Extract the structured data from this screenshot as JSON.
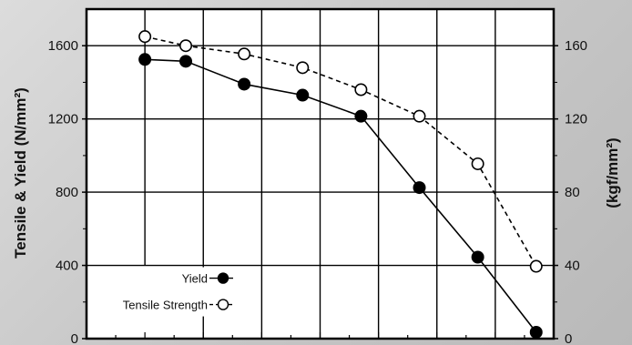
{
  "chart_data": {
    "type": "line",
    "title": "",
    "ylabel_left": "Tensile & Yield (N/mm²)",
    "ylabel_right": "(kgf/mm²)",
    "ylim": [
      0,
      1800
    ],
    "xlim": [
      0,
      8
    ],
    "grid": true,
    "legend_position": "bottom-left",
    "left_ticks": [
      {
        "value": 0,
        "label": "0"
      },
      {
        "value": 400,
        "label": "400"
      },
      {
        "value": 800,
        "label": "800"
      },
      {
        "value": 1200,
        "label": "1200"
      },
      {
        "value": 1600,
        "label": "1600"
      }
    ],
    "right_ticks": [
      {
        "value": 0,
        "label": "0"
      },
      {
        "value": 40,
        "label": "40"
      },
      {
        "value": 80,
        "label": "80"
      },
      {
        "value": 120,
        "label": "120"
      },
      {
        "value": 160,
        "label": "160"
      }
    ],
    "series": [
      {
        "name": "Yield",
        "marker": "filled-circle",
        "line": "solid",
        "x": [
          1,
          1.7,
          2.7,
          3.7,
          4.7,
          5.7,
          6.7,
          7.7
        ],
        "y": [
          1525,
          1515,
          1390,
          1330,
          1215,
          825,
          445,
          35
        ]
      },
      {
        "name": "Tensile Strength",
        "marker": "open-circle",
        "line": "dashed",
        "x": [
          1,
          1.7,
          2.7,
          3.7,
          4.7,
          5.7,
          6.7,
          7.7
        ],
        "y": [
          1650,
          1600,
          1555,
          1480,
          1360,
          1215,
          955,
          395
        ]
      }
    ],
    "colors": {
      "line": "#000000",
      "grid": "#000000",
      "plot_bg": "#ffffff",
      "open_marker_fill": "#ffffff"
    }
  }
}
